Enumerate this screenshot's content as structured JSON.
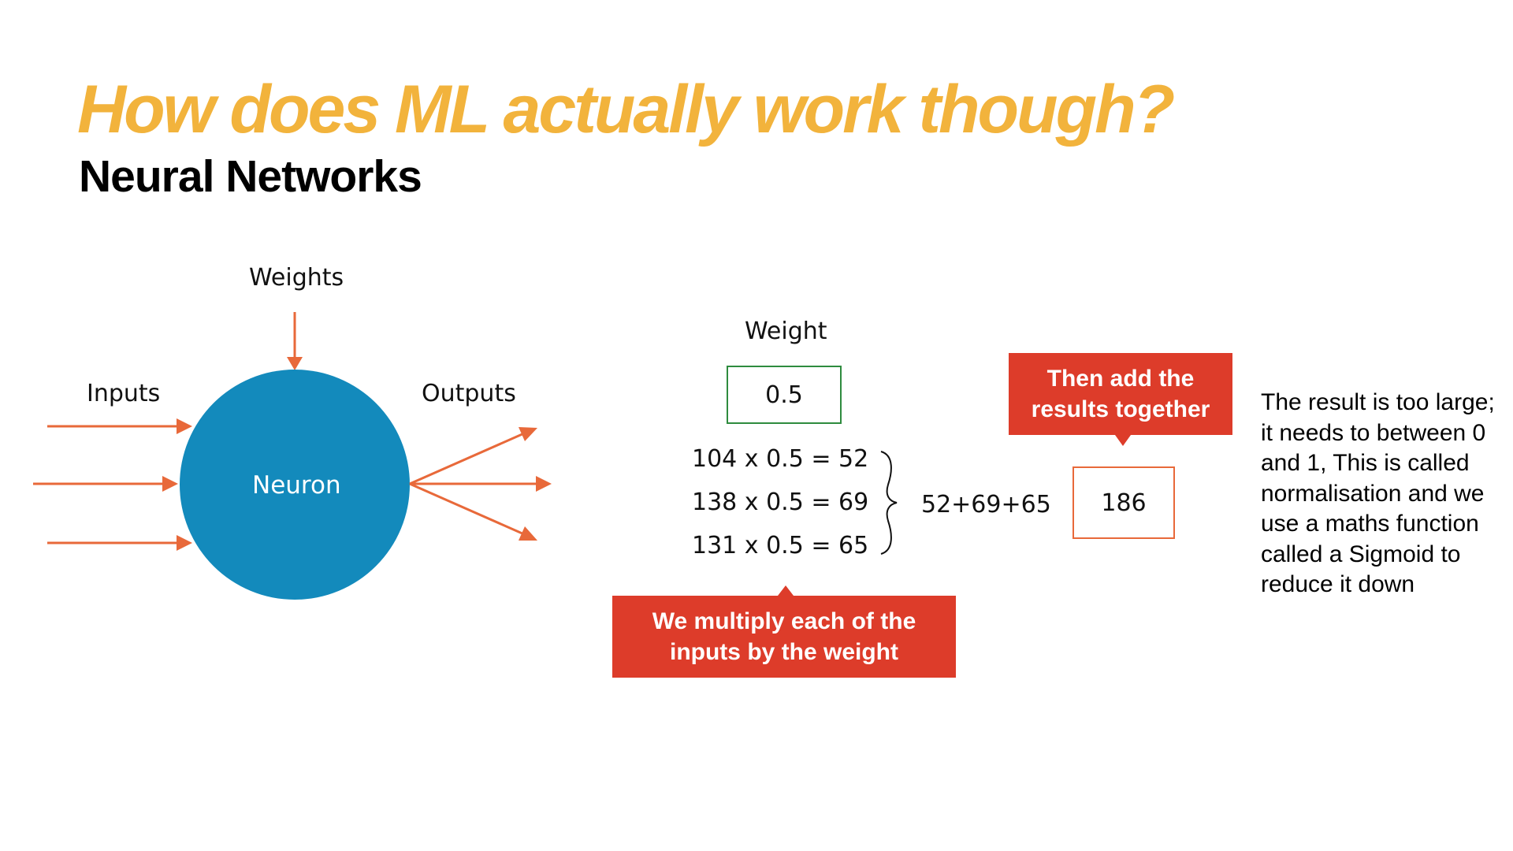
{
  "slide": {
    "title": "How does ML actually work though?",
    "subtitle": "Neural Networks"
  },
  "diagram": {
    "weights_label": "Weights",
    "inputs_label": "Inputs",
    "outputs_label": "Outputs",
    "neuron_label": "Neuron",
    "colors": {
      "neuron": "#138abc",
      "arrow": "#e8693a"
    }
  },
  "calculation": {
    "weight_label": "Weight",
    "weight_value": "0.5",
    "equations": [
      "104 x 0.5 = 52",
      "138 x 0.5 = 69",
      "131 x 0.5 = 65"
    ],
    "sum_expression": "52+69+65",
    "result": "186",
    "callout_multiply": "We multiply each of the\ninputs by the weight",
    "callout_add": "Then add the\nresults together",
    "colors": {
      "weight_box": "#2e8b3e",
      "result_box": "#e8693a",
      "callout": "#dd3c2a"
    }
  },
  "note": "The result is too large; it needs to between 0 and 1, This is called normalisation and we use a maths function called a Sigmoid to reduce it down"
}
